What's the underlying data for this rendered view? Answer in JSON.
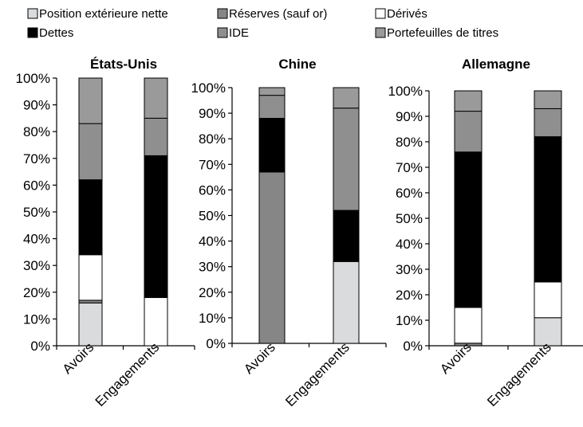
{
  "legend": [
    {
      "key": "net",
      "label": "Position extérieure nette",
      "color": "#d9dbdc"
    },
    {
      "key": "reserves",
      "label": "Réserves (sauf or)",
      "color": "#868686"
    },
    {
      "key": "derivatives",
      "label": "Dérivés",
      "color": "#ffffff"
    },
    {
      "key": "debt",
      "label": "Dettes",
      "color": "#000000"
    },
    {
      "key": "fdi",
      "label": "IDE",
      "color": "#8f8f8f"
    },
    {
      "key": "portfolio",
      "label": "Portefeuilles de titres",
      "color": "#9a9a9a"
    }
  ],
  "chart_data": [
    {
      "type": "bar",
      "stacked": true,
      "title": "États-Unis",
      "categories": [
        "Avoirs",
        "Engagements"
      ],
      "ylim": [
        0,
        100
      ],
      "yticks": [
        "0%",
        "10%",
        "20%",
        "30%",
        "40%",
        "50%",
        "60%",
        "70%",
        "80%",
        "90%",
        "100%"
      ],
      "series": [
        {
          "key": "net",
          "values": [
            16,
            0
          ]
        },
        {
          "key": "reserves",
          "values": [
            1,
            0
          ]
        },
        {
          "key": "derivatives",
          "values": [
            17,
            18
          ]
        },
        {
          "key": "debt",
          "values": [
            28,
            53
          ]
        },
        {
          "key": "fdi",
          "values": [
            21,
            14
          ]
        },
        {
          "key": "portfolio",
          "values": [
            17,
            15
          ]
        }
      ]
    },
    {
      "type": "bar",
      "stacked": true,
      "title": "Chine",
      "categories": [
        "Avoirs",
        "Engagements"
      ],
      "ylim": [
        0,
        100
      ],
      "yticks": [
        "0%",
        "10%",
        "20%",
        "30%",
        "40%",
        "50%",
        "60%",
        "70%",
        "80%",
        "90%",
        "100%"
      ],
      "series": [
        {
          "key": "net",
          "values": [
            0,
            32
          ]
        },
        {
          "key": "reserves",
          "values": [
            67,
            0
          ]
        },
        {
          "key": "derivatives",
          "values": [
            0,
            0
          ]
        },
        {
          "key": "debt",
          "values": [
            21,
            20
          ]
        },
        {
          "key": "fdi",
          "values": [
            9,
            40
          ]
        },
        {
          "key": "portfolio",
          "values": [
            3,
            8
          ]
        }
      ]
    },
    {
      "type": "bar",
      "stacked": true,
      "title": "Allemagne",
      "categories": [
        "Avoirs",
        "Engagements"
      ],
      "ylim": [
        0,
        100
      ],
      "yticks": [
        "0%",
        "10%",
        "20%",
        "30%",
        "40%",
        "50%",
        "60%",
        "70%",
        "80%",
        "90%",
        "100%"
      ],
      "series": [
        {
          "key": "net",
          "values": [
            0,
            11
          ]
        },
        {
          "key": "reserves",
          "values": [
            1,
            0
          ]
        },
        {
          "key": "derivatives",
          "values": [
            14,
            14
          ]
        },
        {
          "key": "debt",
          "values": [
            61,
            57
          ]
        },
        {
          "key": "fdi",
          "values": [
            16,
            11
          ]
        },
        {
          "key": "portfolio",
          "values": [
            8,
            7
          ]
        }
      ]
    }
  ]
}
